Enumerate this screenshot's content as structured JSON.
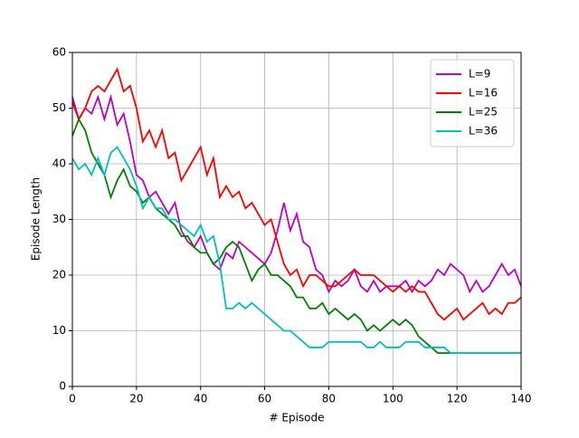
{
  "chart_data": {
    "type": "line",
    "xlabel": "# Episode",
    "ylabel": "Episode Length",
    "x": [
      0,
      2,
      4,
      6,
      8,
      10,
      12,
      14,
      16,
      18,
      20,
      22,
      24,
      26,
      28,
      30,
      32,
      34,
      36,
      38,
      40,
      42,
      44,
      46,
      48,
      50,
      52,
      54,
      56,
      58,
      60,
      62,
      64,
      66,
      68,
      70,
      72,
      74,
      76,
      78,
      80,
      82,
      84,
      86,
      88,
      90,
      92,
      94,
      96,
      98,
      100,
      102,
      104,
      106,
      108,
      110,
      112,
      114,
      116,
      118,
      120,
      122,
      124,
      126,
      128,
      130,
      132,
      134,
      136,
      138,
      140
    ],
    "series": [
      {
        "name": "L=9",
        "color": "#bf00bf",
        "values": [
          52,
          48,
          50,
          49,
          52,
          48,
          52,
          47,
          49,
          44,
          38,
          37,
          34,
          35,
          33,
          31,
          33,
          28,
          26,
          25,
          27,
          24,
          22,
          21,
          24,
          23,
          26,
          25,
          24,
          23,
          22,
          24,
          28,
          33,
          28,
          31,
          26,
          25,
          21,
          20,
          17,
          19,
          18,
          19,
          21,
          18,
          17,
          19,
          17,
          18,
          18,
          18,
          19,
          17,
          19,
          18,
          19,
          21,
          20,
          22,
          21,
          20,
          17,
          19,
          17,
          18,
          20,
          22,
          20,
          21,
          18
        ]
      },
      {
        "name": "L=16",
        "color": "#ff0000",
        "values": [
          51,
          48,
          50,
          53,
          54,
          53,
          55,
          57,
          53,
          54,
          50,
          44,
          46,
          43,
          46,
          41,
          42,
          37,
          39,
          41,
          43,
          38,
          41,
          34,
          36,
          34,
          35,
          32,
          33,
          31,
          29,
          30,
          26,
          22,
          20,
          21,
          18,
          20,
          20,
          19,
          18,
          18,
          19,
          20,
          21,
          20,
          20,
          20,
          19,
          18,
          17,
          18,
          17,
          18,
          17,
          17,
          15,
          13,
          12,
          13,
          14,
          12,
          13,
          14,
          15,
          13,
          14,
          13,
          15,
          15,
          16
        ]
      },
      {
        "name": "L=25",
        "color": "#008000",
        "values": [
          45,
          48,
          46,
          42,
          40,
          38,
          34,
          37,
          39,
          36,
          35,
          33,
          34,
          32,
          31,
          30,
          29,
          27,
          27,
          25,
          24,
          24,
          22,
          23,
          25,
          26,
          25,
          22,
          19,
          21,
          22,
          20,
          20,
          19,
          18,
          16,
          16,
          14,
          14,
          15,
          13,
          14,
          13,
          12,
          13,
          12,
          10,
          11,
          10,
          11,
          12,
          11,
          12,
          11,
          9,
          8,
          7,
          6,
          6,
          6,
          6,
          6,
          6,
          6,
          6,
          6,
          6,
          6,
          6,
          6,
          6
        ]
      },
      {
        "name": "L=36",
        "color": "#00bfbf",
        "values": [
          41,
          39,
          40,
          38,
          41,
          38,
          42,
          43,
          41,
          39,
          36,
          32,
          34,
          32,
          32,
          30,
          30,
          29,
          28,
          27,
          29,
          26,
          27,
          22,
          14,
          14,
          15,
          14,
          15,
          14,
          13,
          12,
          11,
          10,
          10,
          9,
          8,
          7,
          7,
          7,
          8,
          8,
          8,
          8,
          8,
          8,
          7,
          7,
          8,
          7,
          7,
          7,
          8,
          8,
          8,
          7,
          7,
          7,
          7,
          6,
          6,
          6,
          6,
          6,
          6,
          6,
          6,
          6,
          6,
          6,
          6
        ]
      }
    ],
    "xlim": [
      0,
      140
    ],
    "xticks": [
      0,
      20,
      40,
      60,
      80,
      100,
      120,
      140
    ],
    "ylim": [
      0,
      60
    ],
    "yticks": [
      0,
      10,
      20,
      30,
      40,
      50,
      60
    ],
    "grid": true,
    "legend": "upper-right"
  }
}
